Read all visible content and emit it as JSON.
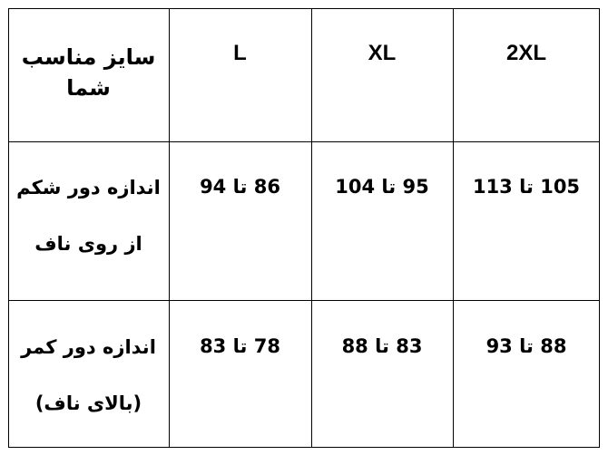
{
  "table": {
    "header": {
      "label": [
        "سایز مناسب",
        "شما"
      ],
      "sizes": [
        "L",
        "XL",
        "2XL"
      ]
    },
    "rows": [
      {
        "label": [
          "اندازه دور شکم",
          "از روی ناف"
        ],
        "values": [
          "86 تا 94",
          "95 تا 104",
          "105 تا 113"
        ]
      },
      {
        "label": [
          "اندازه دور کمر",
          "(بالای ناف)"
        ],
        "values": [
          "78 تا 83",
          "83 تا 88",
          "88 تا 93"
        ]
      }
    ]
  }
}
